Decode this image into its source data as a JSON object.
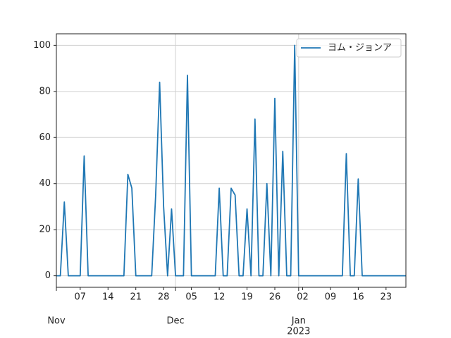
{
  "chart_data": {
    "type": "line",
    "x": [
      "2022-11-01",
      "2022-11-02",
      "2022-11-03",
      "2022-11-04",
      "2022-11-05",
      "2022-11-06",
      "2022-11-07",
      "2022-11-08",
      "2022-11-09",
      "2022-11-10",
      "2022-11-11",
      "2022-11-12",
      "2022-11-13",
      "2022-11-14",
      "2022-11-15",
      "2022-11-16",
      "2022-11-17",
      "2022-11-18",
      "2022-11-19",
      "2022-11-20",
      "2022-11-21",
      "2022-11-22",
      "2022-11-23",
      "2022-11-24",
      "2022-11-25",
      "2022-11-26",
      "2022-11-27",
      "2022-11-28",
      "2022-11-29",
      "2022-11-30",
      "2022-12-01",
      "2022-12-02",
      "2022-12-03",
      "2022-12-04",
      "2022-12-05",
      "2022-12-06",
      "2022-12-07",
      "2022-12-08",
      "2022-12-09",
      "2022-12-10",
      "2022-12-11",
      "2022-12-12",
      "2022-12-13",
      "2022-12-14",
      "2022-12-15",
      "2022-12-16",
      "2022-12-17",
      "2022-12-18",
      "2022-12-19",
      "2022-12-20",
      "2022-12-21",
      "2022-12-22",
      "2022-12-23",
      "2022-12-24",
      "2022-12-25",
      "2022-12-26",
      "2022-12-27",
      "2022-12-28",
      "2022-12-29",
      "2022-12-30",
      "2022-12-31",
      "2023-01-01",
      "2023-01-02",
      "2023-01-03",
      "2023-01-04",
      "2023-01-05",
      "2023-01-06",
      "2023-01-07",
      "2023-01-08",
      "2023-01-09",
      "2023-01-10",
      "2023-01-11",
      "2023-01-12",
      "2023-01-13",
      "2023-01-14",
      "2023-01-15",
      "2023-01-16",
      "2023-01-17",
      "2023-01-18",
      "2023-01-19",
      "2023-01-20",
      "2023-01-21",
      "2023-01-22",
      "2023-01-23",
      "2023-01-24",
      "2023-01-25",
      "2023-01-26",
      "2023-01-27",
      "2023-01-28"
    ],
    "series": [
      {
        "name": "ヨム・ジョンア",
        "color": "#1f77b4",
        "values": [
          0,
          0,
          32,
          0,
          0,
          0,
          0,
          52,
          0,
          0,
          0,
          0,
          0,
          0,
          0,
          0,
          0,
          0,
          44,
          38,
          0,
          0,
          0,
          0,
          0,
          35,
          84,
          30,
          0,
          29,
          0,
          0,
          0,
          87,
          0,
          0,
          0,
          0,
          0,
          0,
          0,
          38,
          0,
          0,
          38,
          35,
          0,
          0,
          29,
          0,
          68,
          0,
          0,
          40,
          0,
          77,
          0,
          54,
          0,
          0,
          100,
          0,
          0,
          0,
          0,
          0,
          0,
          0,
          0,
          0,
          0,
          0,
          0,
          53,
          0,
          0,
          42,
          0,
          0,
          0,
          0,
          0,
          0,
          0,
          0,
          0,
          0,
          0,
          0
        ]
      }
    ],
    "xlim": [
      "2022-11-01",
      "2023-01-28"
    ],
    "xticks": [
      {
        "value": "2022-11-07",
        "label": "07"
      },
      {
        "value": "2022-11-14",
        "label": "14"
      },
      {
        "value": "2022-11-21",
        "label": "21"
      },
      {
        "value": "2022-11-28",
        "label": "28"
      },
      {
        "value": "2022-12-05",
        "label": "05"
      },
      {
        "value": "2022-12-12",
        "label": "12"
      },
      {
        "value": "2022-12-19",
        "label": "19"
      },
      {
        "value": "2022-12-26",
        "label": "26"
      },
      {
        "value": "2023-01-02",
        "label": "02"
      },
      {
        "value": "2023-01-09",
        "label": "09"
      },
      {
        "value": "2023-01-16",
        "label": "16"
      },
      {
        "value": "2023-01-23",
        "label": "23"
      }
    ],
    "xticks_major": [
      {
        "value": "2022-11-01",
        "label": "Nov"
      },
      {
        "value": "2022-12-01",
        "label": "Dec"
      },
      {
        "value": "2023-01-01",
        "label": "Jan",
        "sublabel": "2023"
      }
    ],
    "ylim": [
      -5,
      105
    ],
    "yticks": [
      0,
      20,
      40,
      60,
      80,
      100
    ],
    "grid": true,
    "legend": "upper right"
  }
}
